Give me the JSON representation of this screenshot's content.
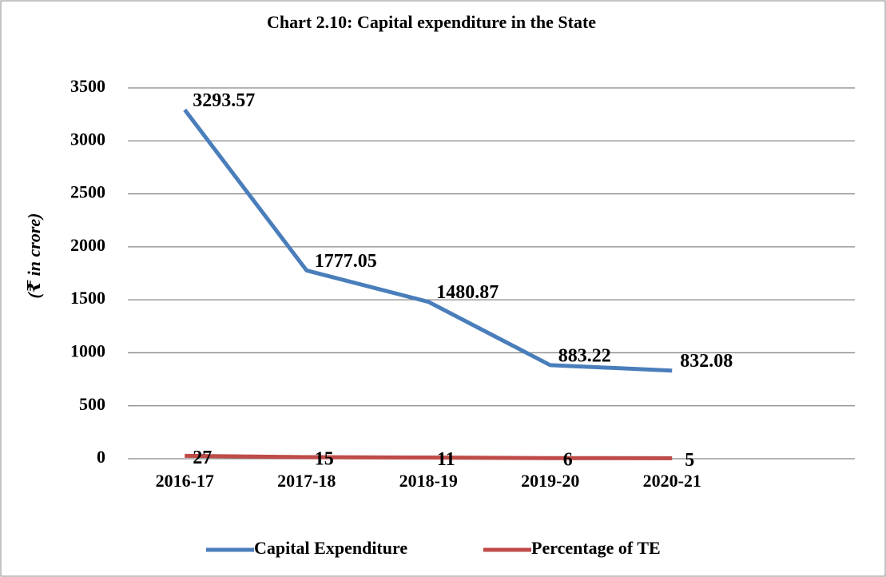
{
  "chart_data": {
    "type": "line",
    "title": "Chart 2.10: Capital expenditure in the State",
    "y_label": "(₹ in crore)",
    "categories": [
      "2016-17",
      "2017-18",
      "2018-19",
      "2019-20",
      "2020-21"
    ],
    "series": [
      {
        "name": "Capital Expenditure",
        "color": "#4a7ebb",
        "values": [
          3293.57,
          1777.05,
          1480.87,
          883.22,
          832.08
        ]
      },
      {
        "name": "Percentage of TE",
        "color": "#be4b48",
        "values": [
          27,
          15,
          11,
          6,
          5
        ]
      }
    ],
    "ylim": [
      0,
      3500
    ],
    "yticks": [
      0,
      500,
      1000,
      1500,
      2000,
      2500,
      3000,
      3500
    ],
    "grid": true,
    "legend": "bottom"
  }
}
